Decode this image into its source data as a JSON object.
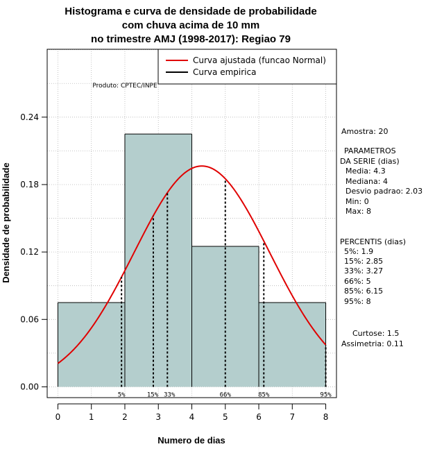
{
  "chart_data": {
    "type": "bar",
    "title": [
      "Histograma e curva de densidade de probabilidade",
      "com chuva acima de 10 mm",
      "no trimestre AMJ (1998-2017): Regiao 79"
    ],
    "xlabel": "Numero de dias",
    "ylabel": "Densidade de probabilidade",
    "xlim": [
      -0.32,
      8.32
    ],
    "ylim": [
      -0.0096,
      0.3004
    ],
    "x_ticks": [
      0,
      1,
      2,
      3,
      4,
      5,
      6,
      7,
      8
    ],
    "y_ticks": [
      0.0,
      0.06,
      0.12,
      0.18,
      0.24
    ],
    "y_tick_labels": [
      "0.00",
      "0.06",
      "0.12",
      "0.18",
      "0.24"
    ],
    "bins": [
      {
        "x0": 0,
        "x1": 2,
        "density": 0.075
      },
      {
        "x0": 2,
        "x1": 4,
        "density": 0.225
      },
      {
        "x0": 4,
        "x1": 6,
        "density": 0.125
      },
      {
        "x0": 6,
        "x1": 8,
        "density": 0.075
      }
    ],
    "normal_fit": {
      "mean": 4.3,
      "sd": 2.03
    },
    "percentiles": [
      {
        "label": "5%",
        "x": 1.9
      },
      {
        "label": "15%",
        "x": 2.85
      },
      {
        "label": "33%",
        "x": 3.27
      },
      {
        "label": "66%",
        "x": 5
      },
      {
        "label": "85%",
        "x": 6.15
      },
      {
        "label": "95%",
        "x": 8
      }
    ],
    "legend": [
      {
        "label": "Curva ajustada (funcao Normal)",
        "color": "#e00000"
      },
      {
        "label": "Curva empirica",
        "color": "#000000"
      }
    ],
    "grid": true,
    "legend_position": "top-right"
  },
  "credit": "Produto: CPTEC/INPE",
  "side_panel": {
    "sample": "Amostra: 20",
    "params_heading": [
      "PARAMETROS",
      "DA SERIE (dias)"
    ],
    "params": [
      "Media: 4.3",
      "Mediana: 4",
      "Desvio padrao: 2.03",
      "Min: 0",
      "Max: 8"
    ],
    "percentiles_heading": "PERCENTIS (dias)",
    "percentiles": [
      "5%: 1.9",
      "15%: 2.85",
      "33%: 3.27",
      "66%: 5",
      "85%: 6.15",
      "95%: 8"
    ],
    "kurtosis": "Curtose: 1.5",
    "skewness": "Assimetria: 0.11"
  },
  "colors": {
    "bar_fill": "#b4cecd",
    "curve": "#e00000",
    "grid": "#b4b4b4"
  }
}
